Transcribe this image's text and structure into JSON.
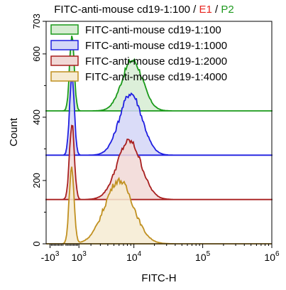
{
  "chart_data": {
    "type": "histogram-overlay",
    "title_parts": [
      {
        "text": "FITC-anti-mouse cd19-1:100 / ",
        "color": "#000000"
      },
      {
        "text": "E1",
        "color": "#e8251f"
      },
      {
        "text": " / ",
        "color": "#000000"
      },
      {
        "text": "P2",
        "color": "#1f9a1f"
      }
    ],
    "xlabel": "FITC-H",
    "ylabel": "Count",
    "x_scale": "biexponential",
    "xlim": [
      -1300,
      1000000
    ],
    "ylim": [
      0,
      703
    ],
    "x_ticks": [
      {
        "value": -1000,
        "base": "-10",
        "exp": "3"
      },
      {
        "value": 1000,
        "base": "10",
        "exp": "3"
      },
      {
        "value": 10000,
        "base": "10",
        "exp": "4"
      },
      {
        "value": 100000,
        "base": "10",
        "exp": "5"
      },
      {
        "value": 1000000,
        "base": "10",
        "exp": "6"
      }
    ],
    "y_ticks": [
      {
        "value": 0,
        "label": "0"
      },
      {
        "value": 200,
        "label": "200"
      },
      {
        "value": 400,
        "label": "400"
      },
      {
        "value": 600,
        "label": "600"
      },
      {
        "value": 703,
        "label": "703"
      }
    ],
    "legend_position": "top",
    "series": [
      {
        "name": "FITC-anti-mouse cd19-1:100",
        "stroke": "#1a9a1a",
        "fill": "#d6ecd2",
        "baseline": 420,
        "peaks": [
          {
            "center": 500,
            "height": 240,
            "width": 160
          },
          {
            "center": 9500,
            "height": 160,
            "width": 4000
          }
        ]
      },
      {
        "name": "FITC-anti-mouse cd19-1:1000",
        "stroke": "#1f1fe0",
        "fill": "#d3d6f7",
        "baseline": 280,
        "peaks": [
          {
            "center": 500,
            "height": 255,
            "width": 165
          },
          {
            "center": 9000,
            "height": 195,
            "width": 4200
          }
        ]
      },
      {
        "name": "FITC-anti-mouse cd19-1:2000",
        "stroke": "#a81f1f",
        "fill": "#f1d8d6",
        "baseline": 140,
        "peaks": [
          {
            "center": 500,
            "height": 240,
            "width": 170
          },
          {
            "center": 8500,
            "height": 185,
            "width": 4300
          }
        ]
      },
      {
        "name": "FITC-anti-mouse cd19-1:4000",
        "stroke": "#c09020",
        "fill": "#f6ebd2",
        "baseline": 0,
        "peaks": [
          {
            "center": 480,
            "height": 240,
            "width": 170
          },
          {
            "center": 6000,
            "height": 200,
            "width": 3800
          }
        ]
      }
    ]
  }
}
